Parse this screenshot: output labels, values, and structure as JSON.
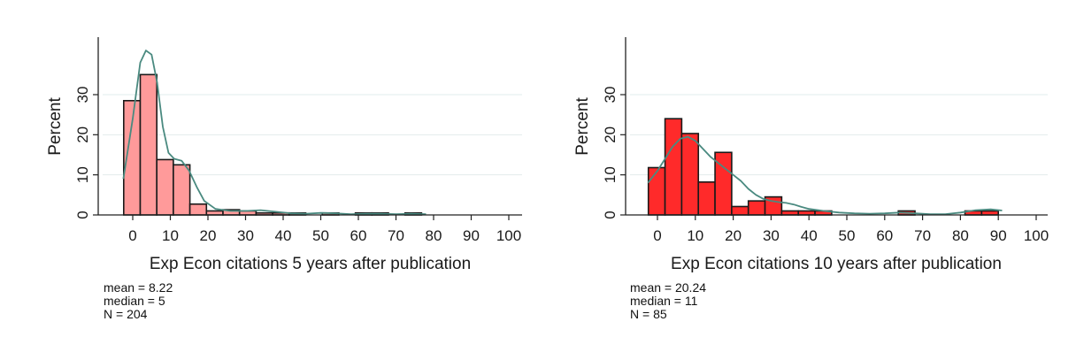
{
  "colors": {
    "left_fill": "#ff9a9a",
    "right_fill": "#ff2a2a",
    "density": "#4a8a80",
    "grid": "#e2ecec",
    "bar_stroke": "#1a1a1a"
  },
  "chart_data": [
    {
      "type": "histogram",
      "xlabel": "Exp Econ citations 5 years after publication",
      "ylabel": "Percent",
      "xlim": [
        -6,
        102
      ],
      "ylim": [
        0,
        44
      ],
      "xticks": [
        0,
        10,
        20,
        30,
        40,
        50,
        60,
        70,
        80,
        90,
        100
      ],
      "yticks": [
        0,
        10,
        20,
        30
      ],
      "grid": true,
      "bin_width": 4.4,
      "bins": [
        {
          "x0": -2.4,
          "value": 28.5
        },
        {
          "x0": 2.0,
          "value": 35.0
        },
        {
          "x0": 6.4,
          "value": 13.8
        },
        {
          "x0": 10.8,
          "value": 12.5
        },
        {
          "x0": 15.2,
          "value": 2.7
        },
        {
          "x0": 19.6,
          "value": 1.0
        },
        {
          "x0": 24.0,
          "value": 1.3
        },
        {
          "x0": 28.4,
          "value": 1.0
        },
        {
          "x0": 32.8,
          "value": 0.5
        },
        {
          "x0": 37.2,
          "value": 0.5
        },
        {
          "x0": 41.6,
          "value": 0.5
        },
        {
          "x0": 50.4,
          "value": 0.5
        },
        {
          "x0": 59.2,
          "value": 0.5
        },
        {
          "x0": 63.6,
          "value": 0.5
        },
        {
          "x0": 72.4,
          "value": 0.5
        }
      ],
      "density": [
        [
          -2.5,
          9
        ],
        [
          0,
          24
        ],
        [
          2,
          38
        ],
        [
          3.5,
          41
        ],
        [
          5,
          40
        ],
        [
          6.5,
          33
        ],
        [
          8,
          22
        ],
        [
          9.5,
          15.5
        ],
        [
          11,
          14
        ],
        [
          13,
          13.5
        ],
        [
          15,
          11
        ],
        [
          17,
          7
        ],
        [
          19,
          3.5
        ],
        [
          22,
          1.5
        ],
        [
          26,
          1
        ],
        [
          30,
          1
        ],
        [
          34,
          1.2
        ],
        [
          38,
          0.8
        ],
        [
          42,
          0.4
        ],
        [
          46,
          0.3
        ],
        [
          50,
          0.5
        ],
        [
          54,
          0.4
        ],
        [
          58,
          0.2
        ],
        [
          62,
          0.3
        ],
        [
          66,
          0.3
        ],
        [
          70,
          0.2
        ],
        [
          74,
          0.3
        ],
        [
          78,
          0.2
        ]
      ],
      "stats": {
        "mean": "mean = 8.22",
        "median": "median = 5",
        "n": "N = 204"
      }
    },
    {
      "type": "histogram",
      "xlabel": "Exp Econ citations 10 years after publication",
      "ylabel": "Percent",
      "xlim": [
        -6,
        102
      ],
      "ylim": [
        0,
        44
      ],
      "xticks": [
        0,
        10,
        20,
        30,
        40,
        50,
        60,
        70,
        80,
        90,
        100
      ],
      "yticks": [
        0,
        10,
        20,
        30
      ],
      "grid": true,
      "bin_width": 4.4,
      "bins": [
        {
          "x0": -2.4,
          "value": 11.8
        },
        {
          "x0": 2.0,
          "value": 24.0
        },
        {
          "x0": 6.4,
          "value": 20.3
        },
        {
          "x0": 10.8,
          "value": 8.2
        },
        {
          "x0": 15.2,
          "value": 15.6
        },
        {
          "x0": 19.6,
          "value": 2.1
        },
        {
          "x0": 24.0,
          "value": 3.5
        },
        {
          "x0": 28.4,
          "value": 4.5
        },
        {
          "x0": 32.8,
          "value": 1.0
        },
        {
          "x0": 37.2,
          "value": 1.0
        },
        {
          "x0": 41.6,
          "value": 1.0
        },
        {
          "x0": 63.6,
          "value": 1.0
        },
        {
          "x0": 81.2,
          "value": 1.0
        },
        {
          "x0": 85.6,
          "value": 1.0
        }
      ],
      "density": [
        [
          -2.5,
          8
        ],
        [
          0,
          11
        ],
        [
          2,
          14
        ],
        [
          4,
          17
        ],
        [
          6,
          19
        ],
        [
          8,
          19.5
        ],
        [
          10,
          18.5
        ],
        [
          12,
          16.5
        ],
        [
          14,
          14.5
        ],
        [
          16,
          13
        ],
        [
          18,
          11.5
        ],
        [
          20,
          10
        ],
        [
          22,
          8.5
        ],
        [
          24,
          6.5
        ],
        [
          26,
          5
        ],
        [
          28,
          4
        ],
        [
          30,
          3.5
        ],
        [
          32,
          3.2
        ],
        [
          34,
          3
        ],
        [
          36,
          2.6
        ],
        [
          38,
          2
        ],
        [
          40,
          1.5
        ],
        [
          44,
          1
        ],
        [
          48,
          0.6
        ],
        [
          52,
          0.4
        ],
        [
          56,
          0.3
        ],
        [
          60,
          0.4
        ],
        [
          64,
          0.6
        ],
        [
          68,
          0.4
        ],
        [
          72,
          0.2
        ],
        [
          76,
          0.2
        ],
        [
          80,
          0.6
        ],
        [
          84,
          1.2
        ],
        [
          88,
          1.4
        ],
        [
          91,
          1.1
        ]
      ],
      "stats": {
        "mean": "mean = 20.24",
        "median": "median = 11",
        "n": "N = 85"
      }
    }
  ]
}
